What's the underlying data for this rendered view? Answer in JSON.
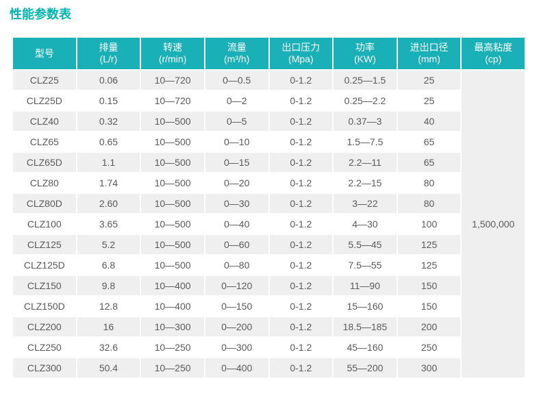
{
  "page": {
    "title": "性能参数表"
  },
  "colors": {
    "title": "#00b4ae",
    "header_bg": "#19b1b7",
    "stripe": "#efefef",
    "text": "#595959"
  },
  "table": {
    "columns": [
      {
        "name": "型号",
        "unit": ""
      },
      {
        "name": "排量",
        "unit": "(L/r)"
      },
      {
        "name": "转速",
        "unit": "(r/min)"
      },
      {
        "name": "流量",
        "unit": "(m³/h)"
      },
      {
        "name": "出口压力",
        "unit": "(Mpa)"
      },
      {
        "name": "功率",
        "unit": "(KW)"
      },
      {
        "name": "进出口径",
        "unit": "(mm)"
      },
      {
        "name": "最高粘度",
        "unit": "(cp)"
      }
    ],
    "rows": [
      [
        "CLZ25",
        "0.06",
        "10—720",
        "0—0.5",
        "0-1.2",
        "0.25—1.5",
        "25"
      ],
      [
        "CLZ25D",
        "0.15",
        "10—720",
        "0—2",
        "0-1.2",
        "0.25—2.2",
        "25"
      ],
      [
        "CLZ40",
        "0.32",
        "10—500",
        "0—5",
        "0-1.2",
        "0.37—3",
        "40"
      ],
      [
        "CLZ65",
        "0.65",
        "10—500",
        "0—10",
        "0-1.2",
        "1.5—7.5",
        "65"
      ],
      [
        "CLZ65D",
        "1.1",
        "10—500",
        "0—15",
        "0-1.2",
        "2.2—11",
        "65"
      ],
      [
        "CLZ80",
        "1.74",
        "10—500",
        "0—20",
        "0-1.2",
        "2.2—15",
        "80"
      ],
      [
        "CLZ80D",
        "2.60",
        "10—500",
        "0—30",
        "0-1.2",
        "3—22",
        "80"
      ],
      [
        "CLZ100",
        "3.65",
        "10—500",
        "0—40",
        "0-1.2",
        "4—30",
        "100"
      ],
      [
        "CLZ125",
        "5.2",
        "10—500",
        "0—60",
        "0-1.2",
        "5.5—45",
        "125"
      ],
      [
        "CLZ125D",
        "6.8",
        "10—500",
        "0—80",
        "0-1.2",
        "7.5—55",
        "125"
      ],
      [
        "CLZ150",
        "9.8",
        "10—400",
        "0—120",
        "0-1.2",
        "11—90",
        "150"
      ],
      [
        "CLZ150D",
        "12.8",
        "10—400",
        "0—150",
        "0-1.2",
        "15—160",
        "150"
      ],
      [
        "CLZ200",
        "16",
        "10—300",
        "0—200",
        "0-1.2",
        "18.5—185",
        "200"
      ],
      [
        "CLZ250",
        "32.6",
        "10—250",
        "0—300",
        "0-1.2",
        "45—160",
        "250"
      ],
      [
        "CLZ300",
        "50.4",
        "10—250",
        "0—400",
        "0-1.2",
        "55—200",
        "300"
      ]
    ],
    "max_viscosity": "1,500,000"
  }
}
